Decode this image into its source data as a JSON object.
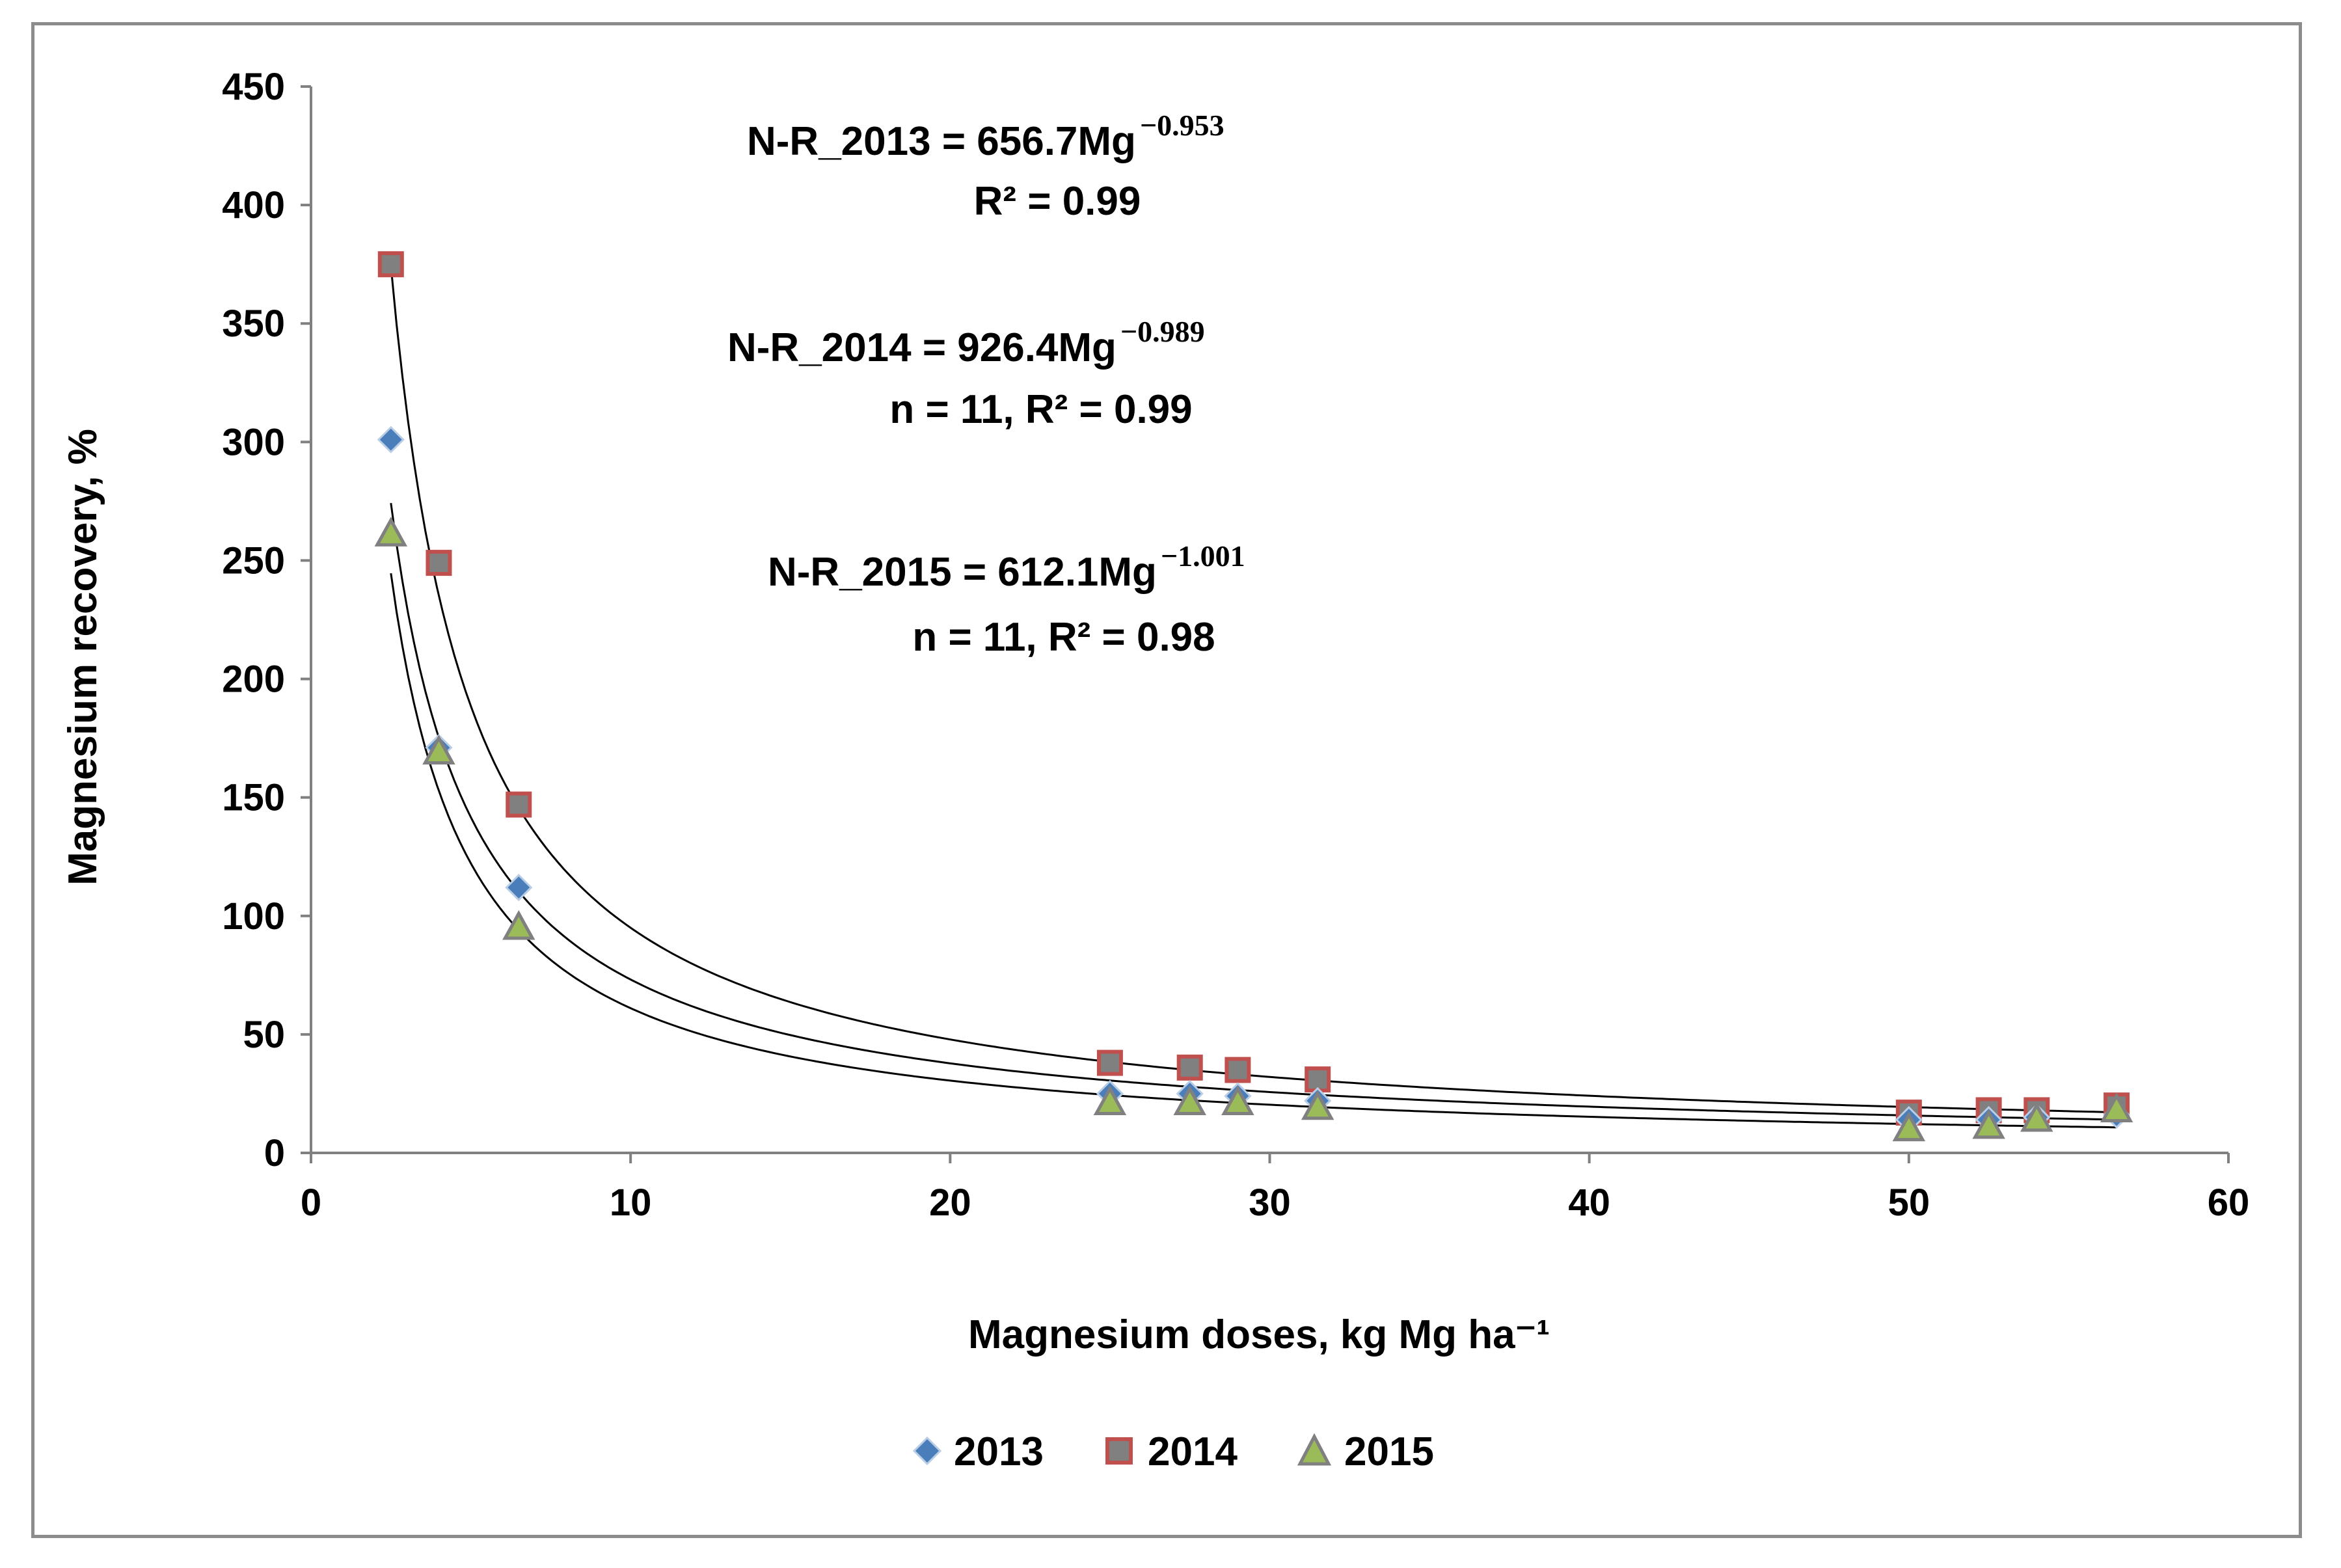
{
  "chart_data": {
    "type": "scatter",
    "xlabel": "Magnesium doses, kg Mg ha⁻¹",
    "ylabel": "Magnesium recovery, %",
    "xlim": [
      0,
      60
    ],
    "ylim": [
      0,
      450
    ],
    "xticks": [
      0,
      10,
      20,
      30,
      40,
      50,
      60
    ],
    "yticks": [
      0,
      50,
      100,
      150,
      200,
      250,
      300,
      350,
      400,
      450
    ],
    "grid": false,
    "legend_position": "bottom",
    "series": [
      {
        "name": "2013",
        "marker": "diamond",
        "color": "#4a7ebb",
        "x": [
          2.5,
          4,
          6.5,
          25,
          27.5,
          29,
          31.5,
          50,
          52.5,
          54,
          56.5
        ],
        "y": [
          301,
          171,
          112,
          25,
          25,
          24,
          22,
          14,
          14,
          15,
          16
        ],
        "fit": {
          "a": 656.7,
          "b": -0.953
        }
      },
      {
        "name": "2014",
        "marker": "square",
        "color": "#808080",
        "edge_color": "#c0504d",
        "x": [
          2.5,
          4,
          6.5,
          25,
          27.5,
          29,
          31.5,
          50,
          52.5,
          54,
          56.5
        ],
        "y": [
          375,
          249,
          147,
          38,
          36,
          35,
          31,
          17,
          18,
          18,
          20
        ],
        "fit": {
          "a": 926.4,
          "b": -0.989
        }
      },
      {
        "name": "2015",
        "marker": "triangle",
        "color": "#9bbb59",
        "edge_color": "#808080",
        "x": [
          2.5,
          4,
          6.5,
          25,
          27.5,
          29,
          31.5,
          50,
          52.5,
          54,
          56.5
        ],
        "y": [
          261,
          169,
          95,
          21,
          21,
          21,
          19,
          10,
          11,
          14,
          18
        ],
        "fit": {
          "a": 612.1,
          "b": -1.001
        }
      }
    ],
    "annotations": [
      {
        "main": "N-R_2013 = 656.7Mg",
        "exp": "−0.953",
        "line2": "R² = 0.99"
      },
      {
        "main": "N-R_2014 = 926.4Mg",
        "exp": "−0.989",
        "line2": "n = 11, R² = 0.99"
      },
      {
        "main": "N-R_2015 = 612.1Mg",
        "exp": "−1.001",
        "line2": "n = 11, R² = 0.98"
      }
    ]
  }
}
